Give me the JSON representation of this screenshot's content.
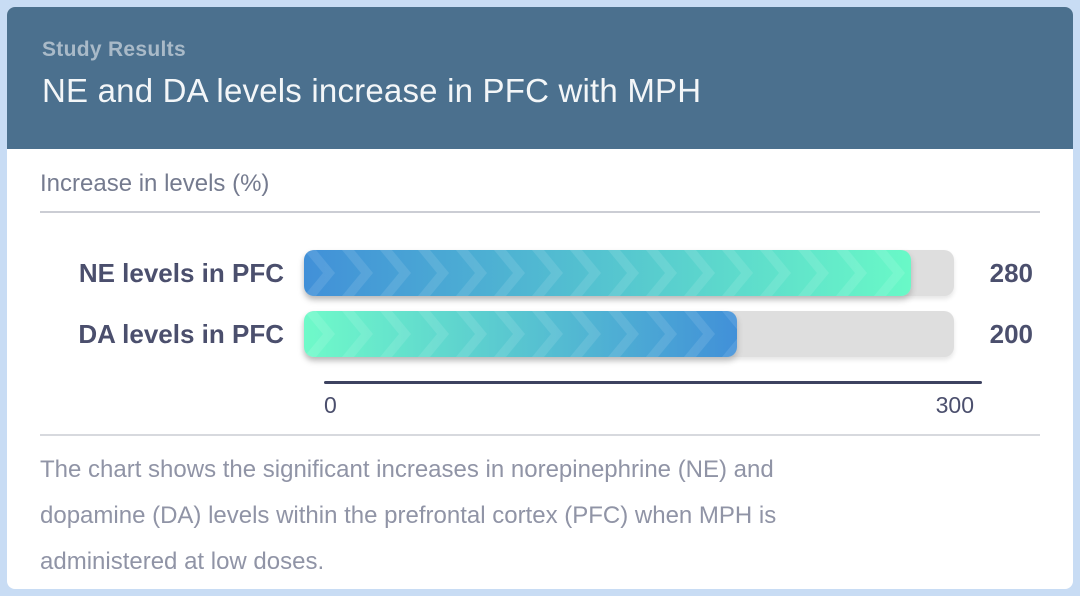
{
  "theme": {
    "frame-bg": "#c8dcf4",
    "card-bg": "#ffffff",
    "header-bg": "#4b708e",
    "eyebrow-color": "#a9bac8",
    "title-color": "#f3f6f8",
    "subtitle-color": "#757b8f",
    "divider-color": "#cbcdd4",
    "divider2-color": "#d7d9de",
    "label-color": "#4b4f6d",
    "track-color": "#dedede",
    "axis-color": "#3d4260",
    "description-color": "#9094a6"
  },
  "header": {
    "eyebrow": "Study Results",
    "title": "NE and DA levels increase in PFC with MPH"
  },
  "chart_data": {
    "type": "bar",
    "orientation": "horizontal",
    "title": "Increase in levels (%)",
    "xlabel": "",
    "ylabel": "",
    "xlim": [
      0,
      300
    ],
    "x_ticks": [
      0,
      300
    ],
    "grid": false,
    "legend": false,
    "categories": [
      "NE levels in PFC",
      "DA levels in PFC"
    ],
    "values": [
      280,
      200
    ],
    "bars": [
      {
        "label": "NE levels in PFC",
        "value": 280,
        "gradient": [
          "#4190d8",
          "#69f9c7"
        ]
      },
      {
        "label": "DA levels in PFC",
        "value": 200,
        "gradient": [
          "#6ffac9",
          "#4190d8"
        ]
      }
    ]
  },
  "description": "The chart shows the significant increases in norepinephrine (NE) and dopamine (DA) levels within the prefrontal cortex (PFC) when MPH is administered at low doses."
}
